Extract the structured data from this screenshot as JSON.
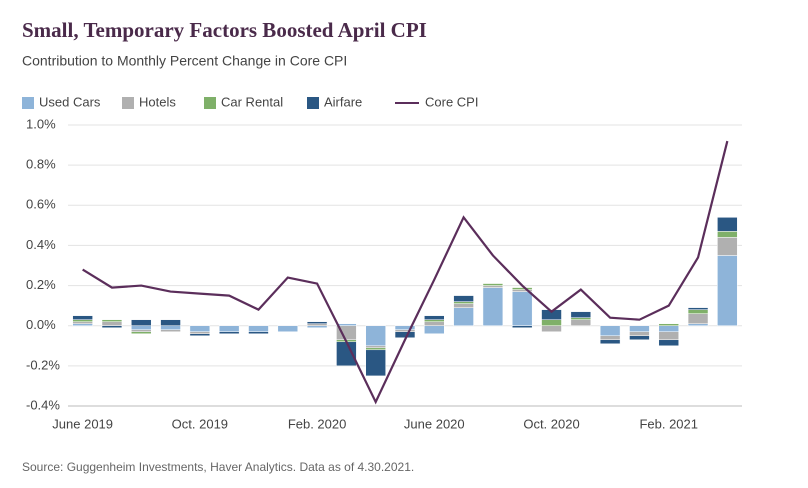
{
  "chart_data": {
    "type": "bar",
    "title": "Small, Temporary Factors Boosted April CPI",
    "subtitle": "Contribution to Monthly Percent Change in Core CPI",
    "source": "Source: Guggenheim Investments, Haver Analytics. Data as of 4.30.2021.",
    "categories": [
      "June 2019",
      null,
      null,
      null,
      "Oct. 2019",
      null,
      null,
      null,
      "Feb. 2020",
      null,
      null,
      null,
      "June 2020",
      null,
      null,
      null,
      "Oct. 2020",
      null,
      null,
      null,
      "Feb. 2021",
      null,
      null
    ],
    "series": [
      {
        "name": "Used Cars",
        "color": "#8eb4d9",
        "values": [
          0.01,
          0.0,
          -0.02,
          -0.02,
          -0.03,
          -0.03,
          -0.03,
          -0.03,
          -0.01,
          0.01,
          -0.1,
          -0.02,
          -0.04,
          0.09,
          0.19,
          0.17,
          0.0,
          0.0,
          -0.05,
          -0.03,
          -0.03,
          0.01,
          0.35
        ]
      },
      {
        "name": "Hotels",
        "color": "#b0b0b0",
        "values": [
          0.01,
          0.02,
          -0.01,
          -0.01,
          -0.01,
          0.0,
          0.0,
          0.0,
          0.01,
          -0.07,
          -0.01,
          -0.01,
          0.02,
          0.02,
          0.01,
          0.01,
          -0.03,
          0.03,
          -0.02,
          -0.02,
          -0.04,
          0.05,
          0.09
        ]
      },
      {
        "name": "Car Rental",
        "color": "#7fb069",
        "values": [
          0.01,
          0.01,
          -0.01,
          0.0,
          0.0,
          0.0,
          0.0,
          0.0,
          0.0,
          -0.01,
          -0.01,
          0.0,
          0.01,
          0.01,
          0.01,
          0.01,
          0.03,
          0.01,
          0.0,
          0.0,
          0.01,
          0.02,
          0.03
        ]
      },
      {
        "name": "Airfare",
        "color": "#2a5783",
        "values": [
          0.02,
          -0.01,
          0.03,
          0.03,
          -0.01,
          -0.01,
          -0.01,
          0.0,
          0.01,
          -0.12,
          -0.13,
          -0.03,
          0.02,
          0.03,
          0.0,
          -0.01,
          0.05,
          0.03,
          -0.02,
          -0.02,
          -0.03,
          0.01,
          0.07
        ]
      },
      {
        "name": "Core CPI",
        "type": "line",
        "color": "#5b2e5b",
        "values": [
          0.28,
          0.19,
          0.2,
          0.17,
          0.16,
          0.15,
          0.08,
          0.24,
          0.21,
          -0.08,
          -0.38,
          -0.07,
          0.23,
          0.54,
          0.35,
          0.2,
          0.07,
          0.18,
          0.04,
          0.03,
          0.1,
          0.34,
          0.92
        ]
      }
    ],
    "ylim": [
      -0.4,
      1.0
    ],
    "yticks": [
      {
        "value": -0.4,
        "label": "-0.4%"
      },
      {
        "value": -0.2,
        "label": "-0.2%"
      },
      {
        "value": 0,
        "label": "0.0%"
      },
      {
        "value": 0.2,
        "label": "0.2%"
      },
      {
        "value": 0.4,
        "label": "0.4%"
      },
      {
        "value": 0.6,
        "label": "0.6%"
      },
      {
        "value": 0.8,
        "label": "0.8%"
      },
      {
        "value": 1.0,
        "label": "1.0%"
      }
    ],
    "grid": true,
    "legend": "top"
  }
}
